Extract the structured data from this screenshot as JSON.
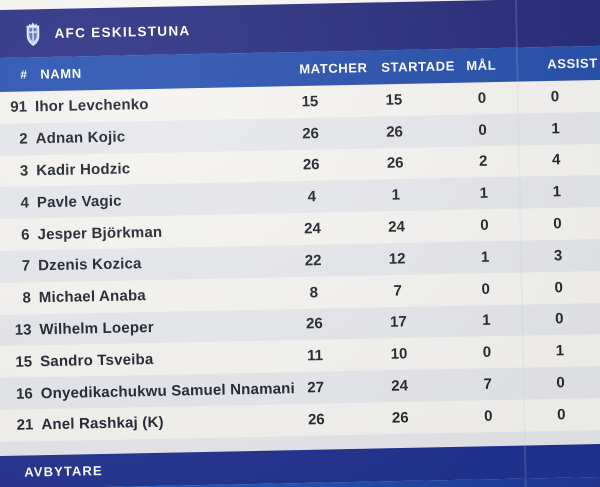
{
  "club": {
    "name": "AFC ESKILSTUNA"
  },
  "table": {
    "columns": {
      "number": "#",
      "name": "NAMN",
      "matches": "MATCHER",
      "started": "STARTADE",
      "goals": "MÅL",
      "assists": "ASSIST"
    },
    "players": [
      {
        "number": "91",
        "name": "Ihor Levchenko",
        "matches": "15",
        "started": "15",
        "goals": "0",
        "assists": "0"
      },
      {
        "number": "2",
        "name": "Adnan Kojic",
        "matches": "26",
        "started": "26",
        "goals": "0",
        "assists": "1"
      },
      {
        "number": "3",
        "name": "Kadir Hodzic",
        "matches": "26",
        "started": "26",
        "goals": "2",
        "assists": "4"
      },
      {
        "number": "4",
        "name": "Pavle Vagic",
        "matches": "4",
        "started": "1",
        "goals": "1",
        "assists": "1"
      },
      {
        "number": "6",
        "name": "Jesper Björkman",
        "matches": "24",
        "started": "24",
        "goals": "0",
        "assists": "0"
      },
      {
        "number": "7",
        "name": "Dzenis Kozica",
        "matches": "22",
        "started": "12",
        "goals": "1",
        "assists": "3"
      },
      {
        "number": "8",
        "name": "Michael Anaba",
        "matches": "8",
        "started": "7",
        "goals": "0",
        "assists": "0"
      },
      {
        "number": "13",
        "name": "Wilhelm Loeper",
        "matches": "26",
        "started": "17",
        "goals": "1",
        "assists": "0"
      },
      {
        "number": "15",
        "name": "Sandro Tsveiba",
        "matches": "11",
        "started": "10",
        "goals": "0",
        "assists": "1"
      },
      {
        "number": "16",
        "name": "Onyedikachukwu Samuel Nnamani",
        "matches": "27",
        "started": "24",
        "goals": "7",
        "assists": "0"
      },
      {
        "number": "21",
        "name": "Anel Rashkaj (K)",
        "matches": "26",
        "started": "26",
        "goals": "0",
        "assists": "0"
      }
    ]
  },
  "footer": {
    "label": "AVBYTARE"
  },
  "icons": {
    "club_crest": "shield-crest-icon"
  },
  "colors": {
    "top_bar_navy": "#2c3181",
    "header_band_blue": "#2b52ae",
    "footer_bar_navy": "#22338f",
    "accent_strip_blue": "#1a5fc9",
    "row_stripe": "#e7e8ec",
    "paper": "#f5f4f1",
    "text_dark": "#26292f",
    "text_light": "#ffffff"
  }
}
